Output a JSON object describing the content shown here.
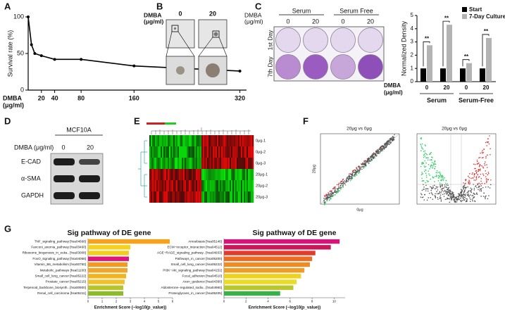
{
  "panel_labels": [
    "A",
    "B",
    "C",
    "D",
    "E",
    "F",
    "G"
  ],
  "chart_data": [
    {
      "type": "line",
      "y_label": "Survival rate (%)",
      "x_label": [
        "DMBA",
        "(μg/ml)"
      ],
      "x": [
        0,
        5,
        10,
        20,
        40,
        80,
        160,
        320
      ],
      "values": [
        100,
        62,
        50,
        47,
        42,
        42,
        33,
        26
      ],
      "xlim": [
        0,
        330
      ],
      "xticks": [
        20,
        40,
        80,
        160,
        320
      ],
      "ylim": [
        0,
        100
      ],
      "yticks": [
        0,
        50,
        100
      ],
      "color": "#000000"
    },
    {
      "type": "bar",
      "y_label": "Normalized Density",
      "x_label": [
        "DMBA",
        "(μg/ml)"
      ],
      "categories": [
        "0",
        "20",
        "0",
        "20"
      ],
      "groups": [
        "Serum",
        "Serum-Free"
      ],
      "series": [
        {
          "name": "Start",
          "color": "#000000",
          "values": [
            1,
            1,
            1,
            1
          ]
        },
        {
          "name": "7-Day Culture",
          "color": "#b3b3b3",
          "values": [
            2.75,
            4.3,
            1.4,
            3.3
          ]
        }
      ],
      "annotations": [
        "**",
        "**",
        "**",
        "**"
      ],
      "ylim": [
        0,
        5
      ],
      "yticks": [
        0,
        1,
        2,
        3,
        4,
        5
      ]
    },
    {
      "type": "hbar",
      "title": "Sig pathway of DE gene",
      "x_label": "Enrichment Score (−log10(p_value))",
      "categories": [
        "TNF_signaling_pathway [hsa04668]",
        "Fanconi_anemia_pathway [hsa03460]",
        "Ribosome_biogenesis_in_euka.. [hsa03008]",
        "FoxO_signaling_pathway [hsa04068]",
        "Vitamin_B6_metabolism [hsa00750]",
        "Metabolic_pathways [hsa01100]",
        "Small_cell_lung_cancer [hsa05222]",
        "Prostate_cancer [hsa05215]",
        "Terpenoid_backbone_biosynth.. [hsa00900]",
        "Renal_cell_carcinoma [hsa05211]"
      ],
      "values": [
        5.8,
        3.0,
        2.9,
        2.9,
        2.8,
        2.8,
        2.7,
        2.6,
        2.5,
        2.5
      ],
      "colors": [
        "#f7a21b",
        "#f5d31b",
        "#f0cf1e",
        "#e0157a",
        "#f59a1f",
        "#f2a52a",
        "#f3b41e",
        "#f2c12a",
        "#b7c42a",
        "#8dbb2c"
      ],
      "xlim": [
        0,
        6
      ],
      "xticks": [
        0,
        1,
        2,
        3,
        4,
        5,
        6
      ]
    },
    {
      "type": "hbar",
      "title": "Sig pathway of DE gene",
      "x_label": "Enrichment Score (−log10(p_value))",
      "categories": [
        "Amoebiasis [hsa05146]",
        "ECM−receptor_interaction [hsa04512]",
        "AGE−RAGE_signaling_pathway.. [hsa04933]",
        "Pathways_in_cancer [hsa05200]",
        "Small_cell_lung_cancer [hsa05222]",
        "PI3K−Akt_signaling_pathway [hsa04151]",
        "Focal_adhesion [hsa04510]",
        "Axon_guidance [hsa04360]",
        "Aldosterone−regulated_sodiu.. [hsa04960]",
        "Proteoglycans_in_cancer [hsa05205]"
      ],
      "values": [
        10.5,
        9.7,
        8.3,
        8.0,
        7.8,
        7.3,
        7.0,
        6.6,
        6.3,
        5.1
      ],
      "colors": [
        "#d4157a",
        "#c8185a",
        "#e23b2a",
        "#ee6a22",
        "#f08a22",
        "#f19a26",
        "#f2d11c",
        "#e9dc22",
        "#b9c72a",
        "#39b04a"
      ],
      "xlim": [
        0,
        11
      ],
      "xticks": [
        0,
        2,
        4,
        6,
        8,
        10
      ]
    }
  ],
  "panel_b": {
    "dmba_label": [
      "DMBA",
      "(μg/ml)"
    ],
    "doses": [
      "0",
      "20"
    ]
  },
  "panel_c": {
    "conditions": [
      "Serum",
      "Serum Free"
    ],
    "dmba_label": [
      "DMBA",
      "(μg/ml)"
    ],
    "doses": [
      "0",
      "20",
      "0",
      "20"
    ],
    "rows": [
      "1st Day",
      "7th Day"
    ]
  },
  "panel_d": {
    "cell_line": "MCF10A",
    "dmba_label": "DMBA (μg/ml)",
    "doses": [
      "0",
      "20"
    ],
    "proteins": [
      "E-CAD",
      "α-SMA",
      "GAPDH"
    ]
  },
  "panel_e": {
    "samples": [
      "0μg-1",
      "0μg-2",
      "0μg-3",
      "20μg-1",
      "20μg-2",
      "20μg-3"
    ]
  },
  "panel_f": {
    "scatter_title": "20μg vs 0μg",
    "x_label": "0μg",
    "y_label": "20μg",
    "volcano_title": "20μg vs 0μg"
  }
}
